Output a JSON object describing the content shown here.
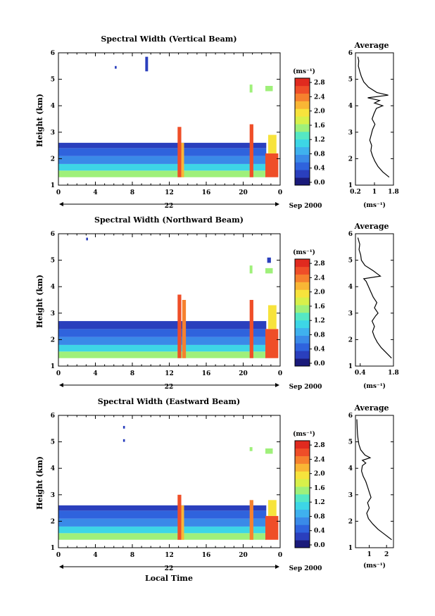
{
  "figure": {
    "x_axis_label": "Local Time",
    "day_label": "22",
    "month_label": "Sep 2000"
  },
  "colorbar": {
    "unit_label": "(ms⁻¹)",
    "colors": [
      "#1a1a7a",
      "#2a3fbd",
      "#2f63dd",
      "#3a8ae8",
      "#3fb1ee",
      "#3dd6e6",
      "#55e8c4",
      "#9ff07a",
      "#d8f04a",
      "#f7e33c",
      "#f9b635",
      "#f6812e",
      "#ef4e28",
      "#e02a1f"
    ]
  },
  "chart_data": [
    {
      "type": "heatmap",
      "title": "Spectral Width (Vertical Beam)",
      "xlim": [
        0,
        24
      ],
      "xticks": [
        "0",
        "4",
        "8",
        "12",
        "16",
        "20",
        "0"
      ],
      "ylabel": "Height (km)",
      "ylim": [
        1,
        6
      ],
      "yticks": [
        "1",
        "2",
        "3",
        "4",
        "5",
        "6"
      ],
      "colorbar_ticks": [
        "0.0",
        "0.4",
        "0.8",
        "1.2",
        "1.6",
        "2.0",
        "2.4",
        "2.8"
      ],
      "colorbar_range": [
        0,
        3.0
      ],
      "profile": {
        "title": "Average",
        "xlabel": "(ms⁻¹)",
        "xticks": [
          "0.2",
          "1",
          "1.8"
        ],
        "xlim": [
          0.2,
          1.8
        ],
        "points": [
          [
            1.62,
            1.3
          ],
          [
            1.35,
            1.5
          ],
          [
            1.15,
            1.7
          ],
          [
            1.02,
            1.9
          ],
          [
            0.92,
            2.1
          ],
          [
            0.85,
            2.3
          ],
          [
            0.88,
            2.5
          ],
          [
            0.8,
            2.7
          ],
          [
            0.86,
            2.9
          ],
          [
            0.92,
            3.1
          ],
          [
            1.02,
            3.3
          ],
          [
            0.9,
            3.5
          ],
          [
            0.98,
            3.7
          ],
          [
            1.08,
            3.9
          ],
          [
            1.35,
            4.0
          ],
          [
            1.0,
            4.1
          ],
          [
            1.22,
            4.2
          ],
          [
            0.72,
            4.3
          ],
          [
            1.58,
            4.4
          ],
          [
            1.1,
            4.5
          ],
          [
            0.75,
            4.7
          ],
          [
            0.55,
            4.9
          ],
          [
            0.45,
            5.1
          ],
          [
            0.38,
            5.3
          ],
          [
            0.32,
            5.5
          ],
          [
            0.34,
            5.7
          ],
          [
            0.3,
            5.85
          ]
        ]
      },
      "regions": [
        {
          "x": [
            0,
            22.5
          ],
          "y": [
            1.3,
            1.55
          ],
          "v": 1.7
        },
        {
          "x": [
            0,
            22.5
          ],
          "y": [
            1.55,
            1.8
          ],
          "v": 1.1
        },
        {
          "x": [
            0,
            22.5
          ],
          "y": [
            1.8,
            2.1
          ],
          "v": 0.75
        },
        {
          "x": [
            0,
            22.5
          ],
          "y": [
            2.1,
            2.4
          ],
          "v": 0.55
        },
        {
          "x": [
            0,
            22.5
          ],
          "y": [
            2.4,
            2.6
          ],
          "v": 0.4
        },
        {
          "x": [
            12.9,
            13.3
          ],
          "y": [
            1.3,
            3.2
          ],
          "v": 2.7
        },
        {
          "x": [
            13.3,
            13.6
          ],
          "y": [
            1.3,
            2.6
          ],
          "v": 2.3
        },
        {
          "x": [
            20.7,
            21.1
          ],
          "y": [
            1.3,
            3.3
          ],
          "v": 2.6
        },
        {
          "x": [
            22.4,
            23.8
          ],
          "y": [
            1.3,
            2.2
          ],
          "v": 2.6
        },
        {
          "x": [
            22.7,
            23.6
          ],
          "y": [
            2.2,
            2.9
          ],
          "v": 2.0
        },
        {
          "x": [
            9.4,
            9.7
          ],
          "y": [
            5.3,
            5.85
          ],
          "v": 0.3
        },
        {
          "x": [
            6.1,
            6.3
          ],
          "y": [
            5.4,
            5.5
          ],
          "v": 0.3
        },
        {
          "x": [
            20.7,
            21.0
          ],
          "y": [
            4.5,
            4.8
          ],
          "v": 1.5
        },
        {
          "x": [
            22.4,
            23.2
          ],
          "y": [
            4.55,
            4.75
          ],
          "v": 1.6
        }
      ]
    },
    {
      "type": "heatmap",
      "title": "Spectral Width (Northward Beam)",
      "xlim": [
        0,
        24
      ],
      "xticks": [
        "0",
        "4",
        "8",
        "12",
        "16",
        "20",
        "0"
      ],
      "ylabel": "Height (km)",
      "ylim": [
        1,
        6
      ],
      "yticks": [
        "1",
        "2",
        "3",
        "4",
        "5",
        "6"
      ],
      "colorbar_ticks": [
        "0.0",
        "0.4",
        "0.8",
        "1.2",
        "1.6",
        "2.0",
        "2.4",
        "2.8"
      ],
      "colorbar_range": [
        0,
        3.0
      ],
      "profile": {
        "title": "Average",
        "xlabel": "(ms⁻¹)",
        "xticks": [
          "0.4",
          "1.8"
        ],
        "xlim": [
          0.2,
          1.8
        ],
        "points": [
          [
            1.72,
            1.3
          ],
          [
            1.5,
            1.5
          ],
          [
            1.28,
            1.7
          ],
          [
            1.12,
            1.9
          ],
          [
            1.0,
            2.1
          ],
          [
            0.92,
            2.3
          ],
          [
            1.0,
            2.5
          ],
          [
            0.9,
            2.7
          ],
          [
            1.05,
            2.9
          ],
          [
            1.15,
            3.0
          ],
          [
            1.0,
            3.2
          ],
          [
            1.1,
            3.4
          ],
          [
            0.95,
            3.6
          ],
          [
            0.85,
            3.8
          ],
          [
            0.75,
            4.0
          ],
          [
            0.65,
            4.2
          ],
          [
            0.55,
            4.3
          ],
          [
            1.25,
            4.4
          ],
          [
            0.95,
            4.6
          ],
          [
            0.6,
            4.8
          ],
          [
            0.45,
            5.0
          ],
          [
            0.42,
            5.2
          ],
          [
            0.35,
            5.4
          ],
          [
            0.38,
            5.6
          ],
          [
            0.3,
            5.85
          ]
        ]
      },
      "regions": [
        {
          "x": [
            0,
            22.5
          ],
          "y": [
            1.3,
            1.55
          ],
          "v": 1.7
        },
        {
          "x": [
            0,
            22.5
          ],
          "y": [
            1.55,
            1.8
          ],
          "v": 1.1
        },
        {
          "x": [
            0,
            22.5
          ],
          "y": [
            1.8,
            2.1
          ],
          "v": 0.75
        },
        {
          "x": [
            0,
            22.5
          ],
          "y": [
            2.1,
            2.4
          ],
          "v": 0.55
        },
        {
          "x": [
            0,
            22.5
          ],
          "y": [
            2.4,
            2.7
          ],
          "v": 0.4
        },
        {
          "x": [
            12.9,
            13.3
          ],
          "y": [
            1.3,
            3.7
          ],
          "v": 2.7
        },
        {
          "x": [
            13.4,
            13.8
          ],
          "y": [
            1.3,
            3.5
          ],
          "v": 2.5
        },
        {
          "x": [
            20.7,
            21.1
          ],
          "y": [
            1.3,
            3.5
          ],
          "v": 2.6
        },
        {
          "x": [
            22.4,
            23.8
          ],
          "y": [
            1.3,
            2.4
          ],
          "v": 2.6
        },
        {
          "x": [
            22.7,
            23.6
          ],
          "y": [
            2.4,
            3.3
          ],
          "v": 2.0
        },
        {
          "x": [
            3.0,
            3.2
          ],
          "y": [
            5.75,
            5.85
          ],
          "v": 0.3
        },
        {
          "x": [
            20.7,
            21.0
          ],
          "y": [
            4.5,
            4.8
          ],
          "v": 1.5
        },
        {
          "x": [
            22.4,
            23.2
          ],
          "y": [
            4.5,
            4.7
          ],
          "v": 1.6
        },
        {
          "x": [
            22.6,
            23.0
          ],
          "y": [
            4.9,
            5.1
          ],
          "v": 0.3
        }
      ]
    },
    {
      "type": "heatmap",
      "title": "Spectral Width (Eastward Beam)",
      "xlim": [
        0,
        24
      ],
      "xticks": [
        "0",
        "4",
        "8",
        "12",
        "16",
        "20",
        "0"
      ],
      "ylabel": "Height (km)",
      "ylim": [
        1,
        6
      ],
      "yticks": [
        "1",
        "2",
        "3",
        "4",
        "5",
        "6"
      ],
      "colorbar_ticks": [
        "0.0",
        "0.4",
        "0.8",
        "1.2",
        "1.6",
        "2.0",
        "2.4",
        "2.8"
      ],
      "colorbar_range": [
        0,
        3.0
      ],
      "profile": {
        "title": "Average",
        "xlabel": "(ms⁻¹)",
        "xticks": [
          "1",
          "2"
        ],
        "xlim": [
          0.2,
          2.4
        ],
        "points": [
          [
            2.3,
            1.3
          ],
          [
            1.9,
            1.5
          ],
          [
            1.5,
            1.7
          ],
          [
            1.2,
            1.9
          ],
          [
            0.95,
            2.1
          ],
          [
            0.85,
            2.3
          ],
          [
            1.0,
            2.5
          ],
          [
            0.9,
            2.7
          ],
          [
            1.1,
            2.9
          ],
          [
            1.0,
            3.1
          ],
          [
            0.9,
            3.3
          ],
          [
            0.8,
            3.5
          ],
          [
            0.65,
            3.7
          ],
          [
            0.55,
            3.9
          ],
          [
            0.6,
            4.1
          ],
          [
            0.8,
            4.2
          ],
          [
            0.6,
            4.3
          ],
          [
            1.05,
            4.4
          ],
          [
            0.75,
            4.5
          ],
          [
            0.5,
            4.7
          ],
          [
            0.4,
            4.9
          ],
          [
            0.35,
            5.1
          ],
          [
            0.32,
            5.3
          ],
          [
            0.3,
            5.5
          ],
          [
            0.28,
            5.85
          ]
        ]
      },
      "regions": [
        {
          "x": [
            0,
            22.5
          ],
          "y": [
            1.3,
            1.55
          ],
          "v": 1.7
        },
        {
          "x": [
            0,
            22.5
          ],
          "y": [
            1.55,
            1.8
          ],
          "v": 1.1
        },
        {
          "x": [
            0,
            22.5
          ],
          "y": [
            1.8,
            2.1
          ],
          "v": 0.75
        },
        {
          "x": [
            0,
            22.5
          ],
          "y": [
            2.1,
            2.4
          ],
          "v": 0.55
        },
        {
          "x": [
            0,
            22.5
          ],
          "y": [
            2.4,
            2.6
          ],
          "v": 0.4
        },
        {
          "x": [
            12.9,
            13.3
          ],
          "y": [
            1.3,
            3.0
          ],
          "v": 2.7
        },
        {
          "x": [
            13.3,
            13.6
          ],
          "y": [
            1.3,
            2.6
          ],
          "v": 2.2
        },
        {
          "x": [
            20.7,
            21.1
          ],
          "y": [
            1.3,
            2.8
          ],
          "v": 2.4
        },
        {
          "x": [
            22.4,
            23.8
          ],
          "y": [
            1.3,
            2.2
          ],
          "v": 2.6
        },
        {
          "x": [
            22.7,
            23.6
          ],
          "y": [
            2.2,
            2.8
          ],
          "v": 2.0
        },
        {
          "x": [
            7.0,
            7.2
          ],
          "y": [
            5.5,
            5.6
          ],
          "v": 0.3
        },
        {
          "x": [
            7.0,
            7.2
          ],
          "y": [
            5.0,
            5.1
          ],
          "v": 0.3
        },
        {
          "x": [
            20.7,
            21.0
          ],
          "y": [
            4.65,
            4.8
          ],
          "v": 1.5
        },
        {
          "x": [
            22.4,
            23.2
          ],
          "y": [
            4.55,
            4.75
          ],
          "v": 1.6
        }
      ]
    }
  ]
}
